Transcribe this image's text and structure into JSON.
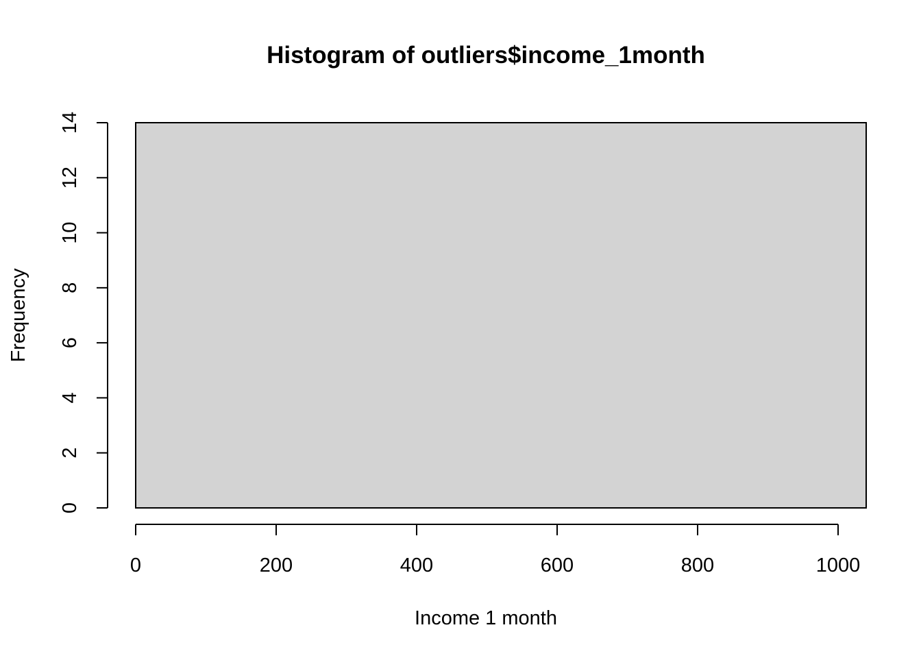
{
  "chart_data": {
    "type": "bar",
    "title": "Histogram of outliers$income_1month",
    "xlabel": "Income 1 month",
    "ylabel": "Frequency",
    "xlim": [
      0,
      1040
    ],
    "ylim": [
      0,
      14
    ],
    "x_ticks": [
      0,
      200,
      400,
      600,
      800,
      1000
    ],
    "y_ticks": [
      0,
      2,
      4,
      6,
      8,
      10,
      12,
      14
    ],
    "bins": [
      {
        "start": 0,
        "end": 1040,
        "count": 14
      }
    ],
    "grid": false,
    "bar_fill": "#d3d3d3",
    "bar_stroke": "#000000"
  }
}
